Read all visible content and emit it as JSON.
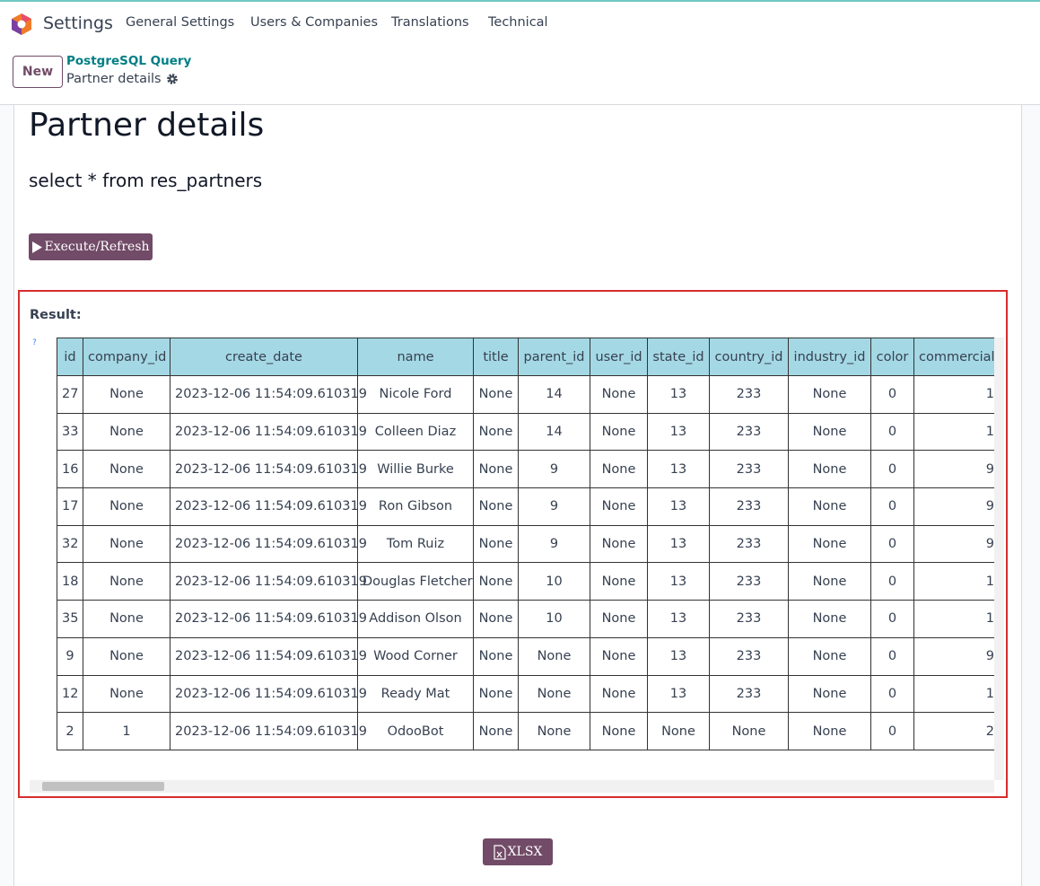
{
  "navbar": {
    "app": "Settings",
    "menus": [
      "General Settings",
      "Users & Companies",
      "Translations",
      "Technical"
    ]
  },
  "control_panel": {
    "new_button": "New",
    "breadcrumb": "PostgreSQL Query",
    "current": "Partner details"
  },
  "form": {
    "title": "Partner details",
    "query": "select * from res_partners",
    "execute_button": "Execute/Refresh",
    "result_label": "Result:",
    "help": "?",
    "export_button": "XLSX"
  },
  "table": {
    "columns": [
      "id",
      "company_id",
      "create_date",
      "name",
      "title",
      "parent_id",
      "user_id",
      "state_id",
      "country_id",
      "industry_id",
      "color",
      "commercial"
    ],
    "rows": [
      [
        27,
        "None",
        "2023-12-06 11:54:09.610319",
        "Nicole Ford",
        "None",
        14,
        "None",
        13,
        233,
        "None",
        0,
        "1"
      ],
      [
        33,
        "None",
        "2023-12-06 11:54:09.610319",
        "Colleen Diaz",
        "None",
        14,
        "None",
        13,
        233,
        "None",
        0,
        "1"
      ],
      [
        16,
        "None",
        "2023-12-06 11:54:09.610319",
        "Willie Burke",
        "None",
        9,
        "None",
        13,
        233,
        "None",
        0,
        "9"
      ],
      [
        17,
        "None",
        "2023-12-06 11:54:09.610319",
        "Ron Gibson",
        "None",
        9,
        "None",
        13,
        233,
        "None",
        0,
        "9"
      ],
      [
        32,
        "None",
        "2023-12-06 11:54:09.610319",
        "Tom Ruiz",
        "None",
        9,
        "None",
        13,
        233,
        "None",
        0,
        "9"
      ],
      [
        18,
        "None",
        "2023-12-06 11:54:09.610319",
        "Douglas Fletcher",
        "None",
        10,
        "None",
        13,
        233,
        "None",
        0,
        "1"
      ],
      [
        35,
        "None",
        "2023-12-06 11:54:09.610319",
        "Addison Olson",
        "None",
        10,
        "None",
        13,
        233,
        "None",
        0,
        "1"
      ],
      [
        9,
        "None",
        "2023-12-06 11:54:09.610319",
        "Wood Corner",
        "None",
        "None",
        "None",
        13,
        233,
        "None",
        0,
        "9"
      ],
      [
        12,
        "None",
        "2023-12-06 11:54:09.610319",
        "Ready Mat",
        "None",
        "None",
        "None",
        13,
        233,
        "None",
        0,
        "1"
      ],
      [
        2,
        1,
        "2023-12-06 11:54:09.610319",
        "OdooBot",
        "None",
        "None",
        "None",
        "None",
        "None",
        "None",
        0,
        "2"
      ]
    ]
  }
}
